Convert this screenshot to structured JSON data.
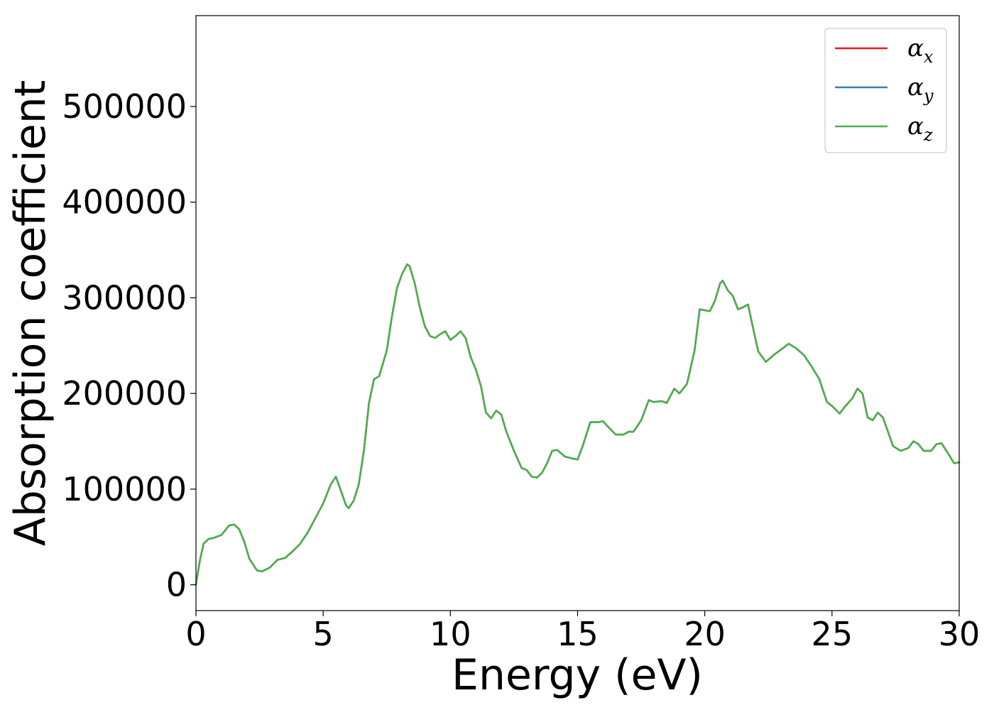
{
  "chart_data": {
    "type": "line",
    "title": "",
    "xlabel": "Energy (eV)",
    "ylabel": "Absorption coefficient",
    "xlim": [
      0,
      30
    ],
    "ylim": [
      -27000,
      595000
    ],
    "xticks": [
      0,
      5,
      10,
      15,
      20,
      25,
      30
    ],
    "xtick_labels": [
      "0",
      "5",
      "10",
      "15",
      "20",
      "25",
      "30"
    ],
    "yticks": [
      0,
      100000,
      200000,
      300000,
      400000,
      500000
    ],
    "ytick_labels": [
      "0",
      "100000",
      "200000",
      "300000",
      "400000",
      "500000"
    ],
    "grid": false,
    "legend_position": "top-right",
    "x": [
      0,
      0.15,
      0.3,
      0.5,
      0.7,
      1.0,
      1.3,
      1.5,
      1.7,
      1.9,
      2.1,
      2.4,
      2.6,
      2.9,
      3.2,
      3.5,
      3.8,
      4.1,
      4.4,
      4.7,
      5.0,
      5.3,
      5.5,
      5.7,
      5.9,
      6.0,
      6.2,
      6.4,
      6.6,
      6.8,
      7.0,
      7.2,
      7.5,
      7.7,
      7.9,
      8.1,
      8.3,
      8.4,
      8.6,
      8.8,
      9.0,
      9.2,
      9.4,
      9.6,
      9.8,
      10.0,
      10.2,
      10.4,
      10.6,
      10.8,
      11.0,
      11.2,
      11.4,
      11.6,
      11.8,
      12.0,
      12.2,
      12.5,
      12.8,
      13.0,
      13.2,
      13.4,
      13.6,
      13.8,
      14.0,
      14.2,
      14.5,
      14.8,
      15.0,
      15.2,
      15.5,
      15.8,
      16.0,
      16.2,
      16.5,
      16.8,
      17.0,
      17.2,
      17.5,
      17.8,
      18.0,
      18.3,
      18.5,
      18.8,
      19.0,
      19.3,
      19.6,
      19.8,
      20.0,
      20.2,
      20.4,
      20.6,
      20.7,
      20.9,
      21.1,
      21.3,
      21.5,
      21.7,
      21.9,
      22.1,
      22.4,
      22.7,
      23.0,
      23.3,
      23.6,
      23.9,
      24.2,
      24.5,
      24.8,
      25.0,
      25.3,
      25.5,
      25.8,
      26.0,
      26.2,
      26.4,
      26.6,
      26.8,
      27.0,
      27.2,
      27.4,
      27.7,
      28.0,
      28.2,
      28.4,
      28.6,
      28.9,
      29.1,
      29.3,
      29.5,
      29.8,
      30.0
    ],
    "series": [
      {
        "name": "αx",
        "color": "#e41a1c",
        "values": [
          0,
          25000,
          43000,
          48000,
          49000,
          52000,
          62000,
          63000,
          58000,
          45000,
          27000,
          15000,
          14000,
          18000,
          26000,
          28000,
          35000,
          43000,
          55000,
          70000,
          85000,
          105000,
          113000,
          98000,
          83000,
          80000,
          88000,
          105000,
          140000,
          190000,
          215000,
          218000,
          245000,
          280000,
          310000,
          325000,
          335000,
          333000,
          315000,
          290000,
          270000,
          260000,
          258000,
          262000,
          265000,
          256000,
          260000,
          265000,
          258000,
          238000,
          225000,
          208000,
          180000,
          174000,
          182000,
          178000,
          160000,
          140000,
          122000,
          120000,
          113000,
          112000,
          117000,
          127000,
          140000,
          141000,
          134000,
          132000,
          131000,
          145000,
          170000,
          170000,
          171000,
          165000,
          157000,
          157000,
          160000,
          160000,
          172000,
          193000,
          191000,
          192000,
          190000,
          205000,
          200000,
          210000,
          245000,
          288000,
          287000,
          286000,
          297000,
          315000,
          318000,
          308000,
          302000,
          288000,
          290000,
          293000,
          268000,
          244000,
          233000,
          240000,
          246000,
          252000,
          247000,
          240000,
          228000,
          215000,
          191000,
          187000,
          179000,
          186000,
          195000,
          205000,
          200000,
          175000,
          172000,
          180000,
          175000,
          160000,
          145000,
          140000,
          143000,
          150000,
          147000,
          140000,
          140000,
          147000,
          148000,
          140000,
          127000,
          128000
        ]
      },
      {
        "name": "αy",
        "color": "#377eb8",
        "values": [
          0,
          25000,
          43000,
          48000,
          49000,
          52000,
          62000,
          63000,
          58000,
          45000,
          27000,
          15000,
          14000,
          18000,
          26000,
          28000,
          35000,
          43000,
          55000,
          70000,
          85000,
          105000,
          113000,
          98000,
          83000,
          80000,
          88000,
          105000,
          140000,
          190000,
          215000,
          218000,
          245000,
          280000,
          310000,
          325000,
          335000,
          333000,
          315000,
          290000,
          270000,
          260000,
          258000,
          262000,
          265000,
          256000,
          260000,
          265000,
          258000,
          238000,
          225000,
          208000,
          180000,
          174000,
          182000,
          178000,
          160000,
          140000,
          122000,
          120000,
          113000,
          112000,
          117000,
          127000,
          140000,
          141000,
          134000,
          132000,
          131000,
          145000,
          170000,
          170000,
          171000,
          165000,
          157000,
          157000,
          160000,
          160000,
          172000,
          193000,
          191000,
          192000,
          190000,
          205000,
          200000,
          210000,
          245000,
          288000,
          287000,
          286000,
          297000,
          315000,
          318000,
          308000,
          302000,
          288000,
          290000,
          293000,
          268000,
          244000,
          233000,
          240000,
          246000,
          252000,
          247000,
          240000,
          228000,
          215000,
          191000,
          187000,
          179000,
          186000,
          195000,
          205000,
          200000,
          175000,
          172000,
          180000,
          175000,
          160000,
          145000,
          140000,
          143000,
          150000,
          147000,
          140000,
          140000,
          147000,
          148000,
          140000,
          127000,
          128000
        ]
      },
      {
        "name": "αz",
        "color": "#4daf4a",
        "values": [
          0,
          25000,
          43000,
          48000,
          49000,
          52000,
          62000,
          63000,
          58000,
          45000,
          27000,
          15000,
          14000,
          18000,
          26000,
          28000,
          35000,
          43000,
          55000,
          70000,
          85000,
          105000,
          113000,
          98000,
          83000,
          80000,
          88000,
          105000,
          140000,
          190000,
          215000,
          218000,
          245000,
          280000,
          310000,
          325000,
          335000,
          333000,
          315000,
          290000,
          270000,
          260000,
          258000,
          262000,
          265000,
          256000,
          260000,
          265000,
          258000,
          238000,
          225000,
          208000,
          180000,
          174000,
          182000,
          178000,
          160000,
          140000,
          122000,
          120000,
          113000,
          112000,
          117000,
          127000,
          140000,
          141000,
          134000,
          132000,
          131000,
          145000,
          170000,
          170000,
          171000,
          165000,
          157000,
          157000,
          160000,
          160000,
          172000,
          193000,
          191000,
          192000,
          190000,
          205000,
          200000,
          210000,
          245000,
          288000,
          287000,
          286000,
          297000,
          315000,
          318000,
          308000,
          302000,
          288000,
          290000,
          293000,
          268000,
          244000,
          233000,
          240000,
          246000,
          252000,
          247000,
          240000,
          228000,
          215000,
          191000,
          187000,
          179000,
          186000,
          195000,
          205000,
          200000,
          175000,
          172000,
          180000,
          175000,
          160000,
          145000,
          140000,
          143000,
          150000,
          147000,
          140000,
          140000,
          147000,
          148000,
          140000,
          127000,
          128000
        ]
      }
    ],
    "legend": [
      {
        "symbol": "α",
        "sub": "x"
      },
      {
        "symbol": "α",
        "sub": "y"
      },
      {
        "symbol": "α",
        "sub": "z"
      }
    ]
  }
}
